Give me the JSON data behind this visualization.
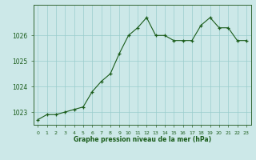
{
  "x": [
    0,
    1,
    2,
    3,
    4,
    5,
    6,
    7,
    8,
    9,
    10,
    11,
    12,
    13,
    14,
    15,
    16,
    17,
    18,
    19,
    20,
    21,
    22,
    23
  ],
  "y": [
    1022.7,
    1022.9,
    1022.9,
    1023.0,
    1023.1,
    1023.2,
    1023.8,
    1024.2,
    1024.5,
    1025.3,
    1026.0,
    1026.3,
    1026.7,
    1026.0,
    1026.0,
    1025.8,
    1025.8,
    1025.8,
    1026.4,
    1026.7,
    1026.3,
    1026.3,
    1025.8,
    1025.8
  ],
  "line_color": "#1a5c1a",
  "marker_color": "#1a5c1a",
  "bg_color": "#cce8e8",
  "grid_color": "#99cccc",
  "axis_label_color": "#1a5c1a",
  "tick_color": "#1a5c1a",
  "spine_color": "#336633",
  "xlabel": "Graphe pression niveau de la mer (hPa)",
  "ylim_min": 1022.5,
  "ylim_max": 1027.2,
  "yticks": [
    1023,
    1024,
    1025,
    1026
  ],
  "xtick_labels": [
    "0",
    "1",
    "2",
    "3",
    "4",
    "5",
    "6",
    "7",
    "8",
    "9",
    "10",
    "11",
    "12",
    "13",
    "14",
    "15",
    "16",
    "17",
    "18",
    "19",
    "20",
    "21",
    "22",
    "23"
  ]
}
